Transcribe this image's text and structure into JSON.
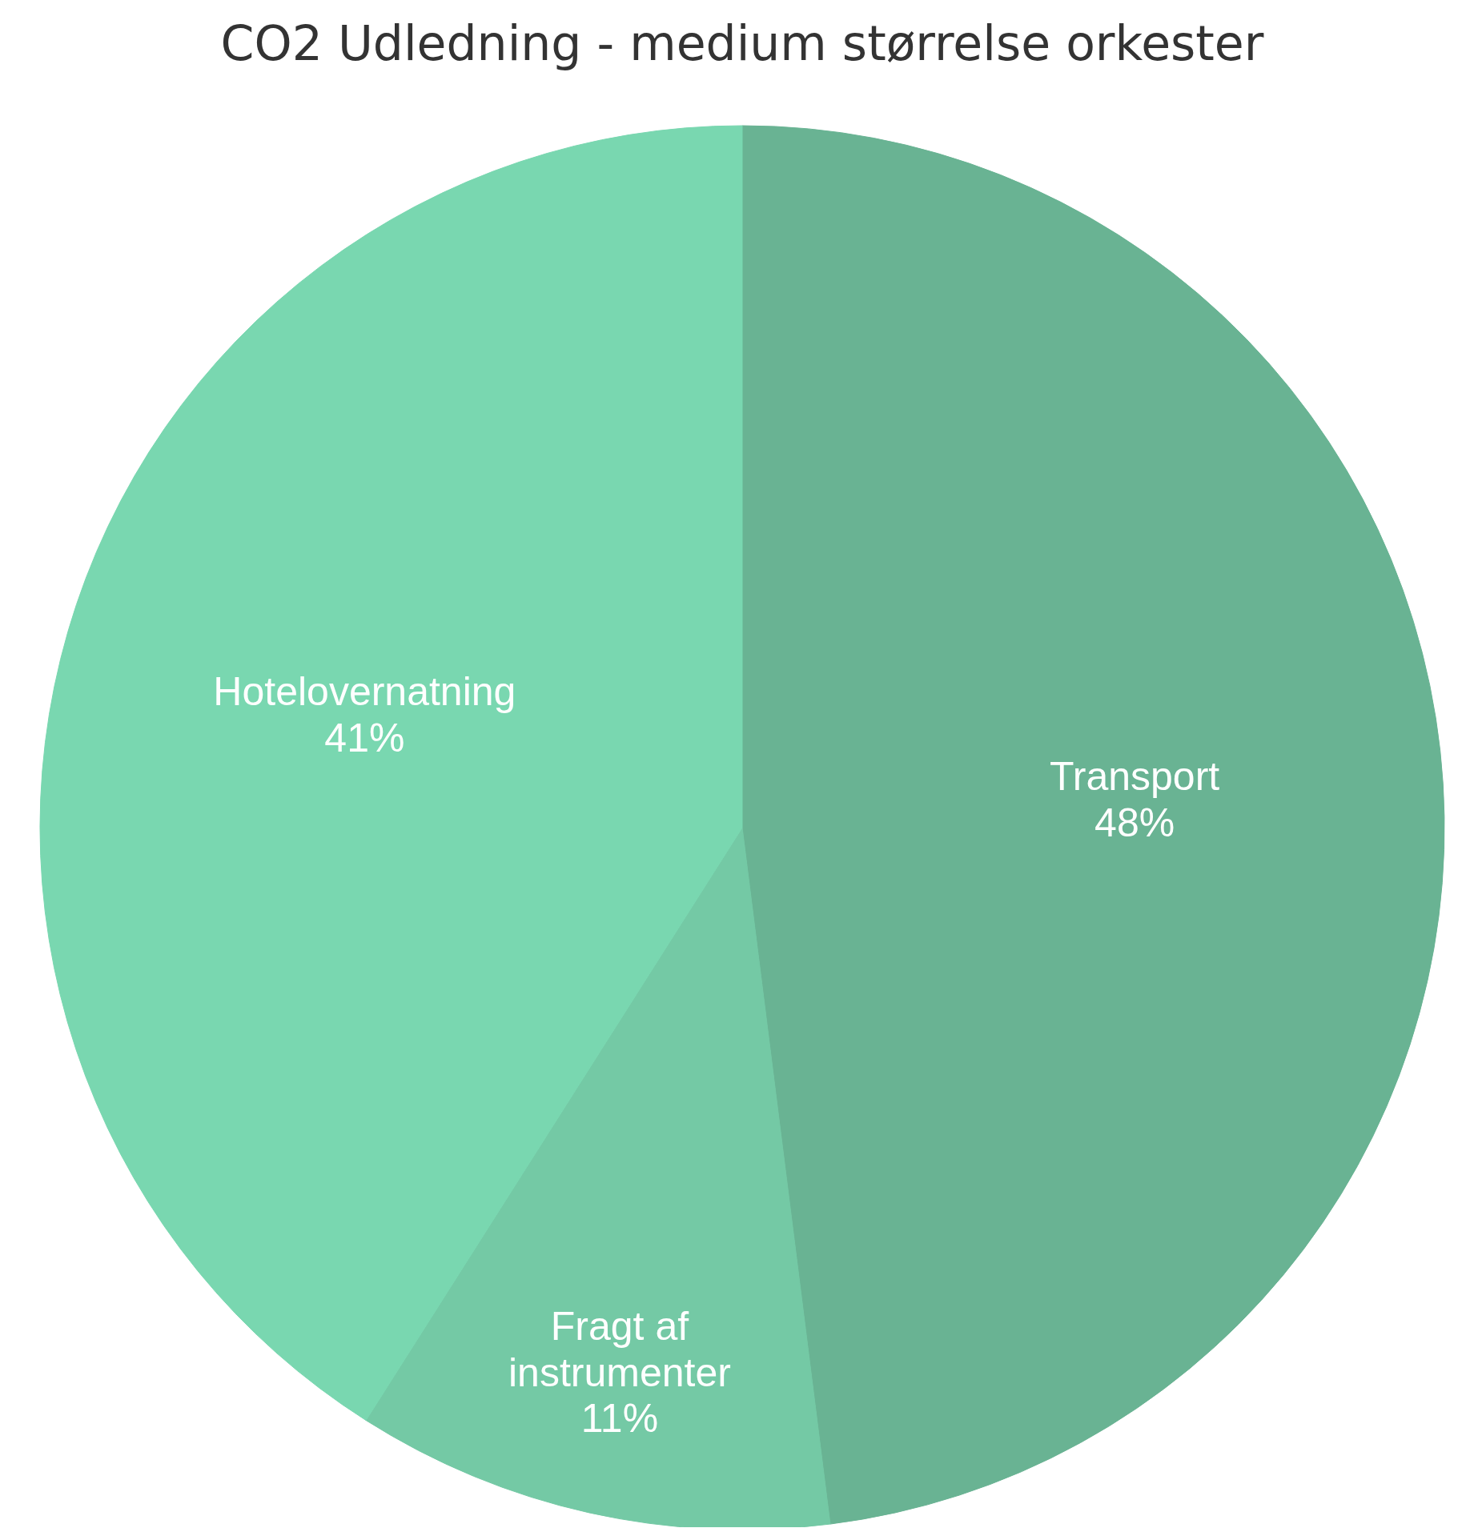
{
  "chart_data": {
    "type": "pie",
    "title": "CO2 Udledning - medium størrelse orkester",
    "categories": [
      "Transport",
      "Fragt af instrumenter",
      "Hotelovernatning"
    ],
    "values": [
      48,
      11,
      41
    ],
    "value_labels": [
      "48%",
      "11%",
      "41%"
    ],
    "colors": [
      "#69b393",
      "#74c9a5",
      "#79d7b0"
    ]
  }
}
